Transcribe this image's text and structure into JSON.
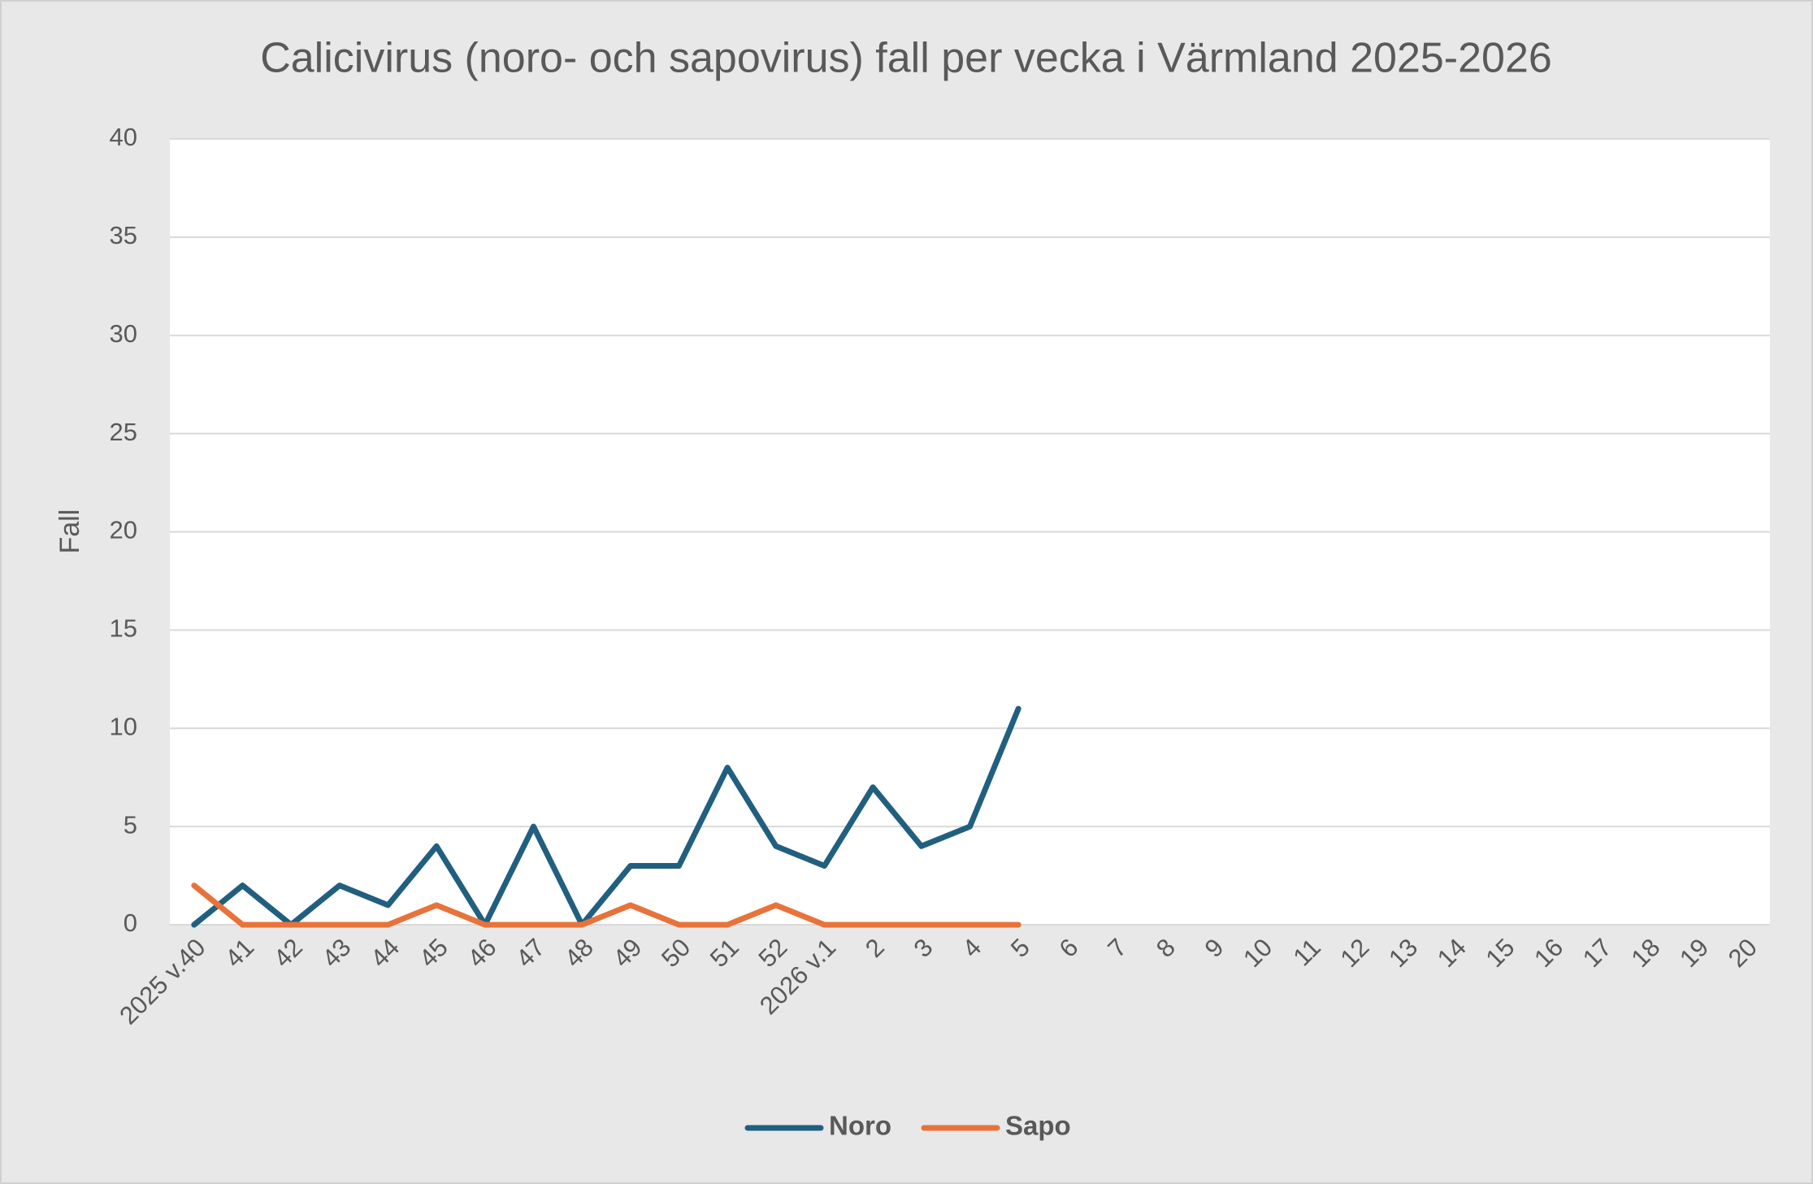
{
  "chart_data": {
    "type": "line",
    "title": "Calicivirus (noro- och sapovirus) fall per vecka i Värmland 2025-2026",
    "y_label": "Fall",
    "categories": [
      "2025 v.40",
      "41",
      "42",
      "43",
      "44",
      "45",
      "46",
      "47",
      "48",
      "49",
      "50",
      "51",
      "52",
      "2026 v.1",
      "2",
      "3",
      "4",
      "5",
      "6",
      "7",
      "8",
      "9",
      "10",
      "11",
      "12",
      "13",
      "14",
      "15",
      "16",
      "17",
      "18",
      "19",
      "20"
    ],
    "series": [
      {
        "name": "Noro",
        "color": "#215f80",
        "values": [
          0,
          2,
          0,
          2,
          1,
          4,
          0,
          5,
          0,
          3,
          3,
          8,
          4,
          3,
          7,
          4,
          5,
          11,
          null,
          null,
          null,
          null,
          null,
          null,
          null,
          null,
          null,
          null,
          null,
          null,
          null,
          null,
          null
        ]
      },
      {
        "name": "Sapo",
        "color": "#e8733a",
        "values": [
          2,
          0,
          0,
          0,
          0,
          1,
          0,
          0,
          0,
          1,
          0,
          0,
          1,
          0,
          0,
          0,
          0,
          0,
          null,
          null,
          null,
          null,
          null,
          null,
          null,
          null,
          null,
          null,
          null,
          null,
          null,
          null,
          null
        ]
      }
    ],
    "ylim": [
      0,
      40
    ],
    "yticks": [
      0,
      5,
      10,
      15,
      20,
      25,
      30,
      35,
      40
    ],
    "grid": true,
    "legend": "bottom"
  }
}
